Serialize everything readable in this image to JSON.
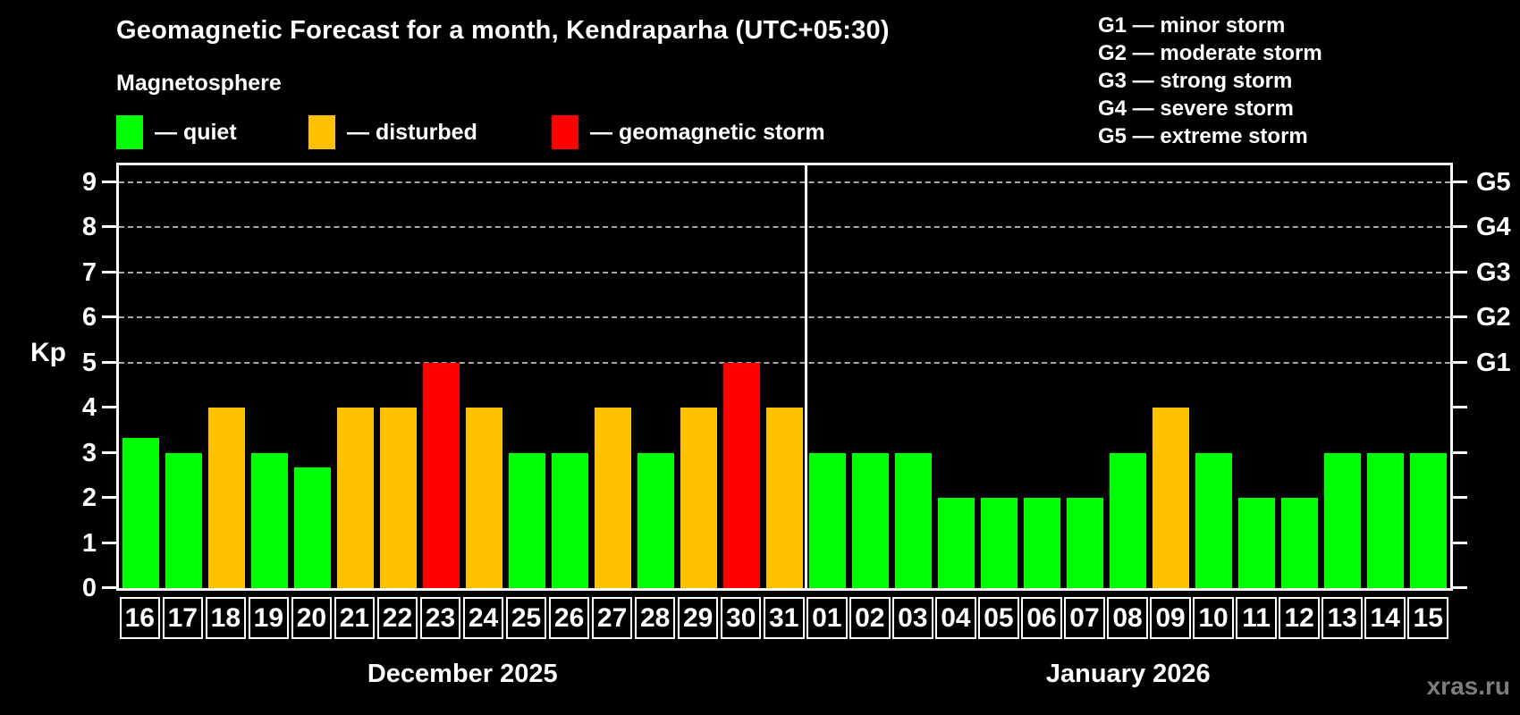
{
  "header": {
    "title": "Geomagnetic Forecast for a month, Kendraparha (UTC+05:30)",
    "subtitle": "Magnetosphere"
  },
  "legend": {
    "items": [
      {
        "key": "quiet",
        "label": "— quiet",
        "color": "#00ff00"
      },
      {
        "key": "disturbed",
        "label": "— disturbed",
        "color": "#ffc000"
      },
      {
        "key": "storm",
        "label": "— geomagnetic storm",
        "color": "#ff0000"
      }
    ]
  },
  "storm_scale": {
    "items": [
      {
        "label": "G1 — minor storm"
      },
      {
        "label": "G2 — moderate storm"
      },
      {
        "label": "G3 — strong storm"
      },
      {
        "label": "G4 — severe storm"
      },
      {
        "label": "G5 — extreme storm"
      }
    ]
  },
  "chart_data": {
    "type": "bar",
    "ylabel": "Kp",
    "ylim": [
      0,
      9.4
    ],
    "yticks": [
      0,
      1,
      2,
      3,
      4,
      5,
      6,
      7,
      8,
      9
    ],
    "grid_levels": [
      5,
      6,
      7,
      8,
      9
    ],
    "right_axis": [
      {
        "kp": 5,
        "label": "G1"
      },
      {
        "kp": 6,
        "label": "G2"
      },
      {
        "kp": 7,
        "label": "G3"
      },
      {
        "kp": 8,
        "label": "G4"
      },
      {
        "kp": 9,
        "label": "G5"
      }
    ],
    "legend_position": "top-left",
    "grid": "dashed-horizontal-at-storm-levels",
    "months": [
      {
        "label": "December 2025",
        "days": [
          {
            "date": "16",
            "kp": 3.33,
            "status": "quiet"
          },
          {
            "date": "17",
            "kp": 3,
            "status": "quiet"
          },
          {
            "date": "18",
            "kp": 4,
            "status": "disturbed"
          },
          {
            "date": "19",
            "kp": 3,
            "status": "quiet"
          },
          {
            "date": "20",
            "kp": 2.67,
            "status": "quiet"
          },
          {
            "date": "21",
            "kp": 4,
            "status": "disturbed"
          },
          {
            "date": "22",
            "kp": 4,
            "status": "disturbed"
          },
          {
            "date": "23",
            "kp": 5,
            "status": "storm"
          },
          {
            "date": "24",
            "kp": 4,
            "status": "disturbed"
          },
          {
            "date": "25",
            "kp": 3,
            "status": "quiet"
          },
          {
            "date": "26",
            "kp": 3,
            "status": "quiet"
          },
          {
            "date": "27",
            "kp": 4,
            "status": "disturbed"
          },
          {
            "date": "28",
            "kp": 3,
            "status": "quiet"
          },
          {
            "date": "29",
            "kp": 4,
            "status": "disturbed"
          },
          {
            "date": "30",
            "kp": 5,
            "status": "storm"
          },
          {
            "date": "31",
            "kp": 4,
            "status": "disturbed"
          }
        ]
      },
      {
        "label": "January 2026",
        "days": [
          {
            "date": "01",
            "kp": 3,
            "status": "quiet"
          },
          {
            "date": "02",
            "kp": 3,
            "status": "quiet"
          },
          {
            "date": "03",
            "kp": 3,
            "status": "quiet"
          },
          {
            "date": "04",
            "kp": 2,
            "status": "quiet"
          },
          {
            "date": "05",
            "kp": 2,
            "status": "quiet"
          },
          {
            "date": "06",
            "kp": 2,
            "status": "quiet"
          },
          {
            "date": "07",
            "kp": 2,
            "status": "quiet"
          },
          {
            "date": "08",
            "kp": 3,
            "status": "quiet"
          },
          {
            "date": "09",
            "kp": 4,
            "status": "disturbed"
          },
          {
            "date": "10",
            "kp": 3,
            "status": "quiet"
          },
          {
            "date": "11",
            "kp": 2,
            "status": "quiet"
          },
          {
            "date": "12",
            "kp": 2,
            "status": "quiet"
          },
          {
            "date": "13",
            "kp": 3,
            "status": "quiet"
          },
          {
            "date": "14",
            "kp": 3,
            "status": "quiet"
          },
          {
            "date": "15",
            "kp": 3,
            "status": "quiet"
          }
        ]
      }
    ]
  },
  "watermark": "xras.ru"
}
